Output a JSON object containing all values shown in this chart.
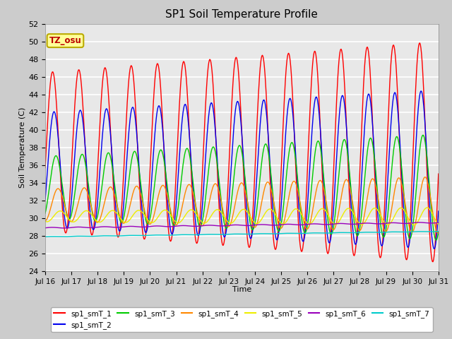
{
  "title": "SP1 Soil Temperature Profile",
  "xlabel": "Time",
  "ylabel": "Soil Temperature (C)",
  "ylim": [
    24,
    52
  ],
  "series_colors": [
    "#FF0000",
    "#0000EE",
    "#00CC00",
    "#FF8800",
    "#EEEE00",
    "#9900BB",
    "#00CCCC"
  ],
  "series_labels": [
    "sp1_smT_1",
    "sp1_smT_2",
    "sp1_smT_3",
    "sp1_smT_4",
    "sp1_smT_5",
    "sp1_smT_6",
    "sp1_smT_7"
  ],
  "annotation_text": "TZ_osu",
  "annotation_color": "#BB0000",
  "annotation_bg": "#FFFF99",
  "annotation_border": "#BBAA00",
  "plot_bg": "#E8E8E8",
  "grid_color": "#FFFFFF",
  "n_days": 15,
  "start_day": 16
}
